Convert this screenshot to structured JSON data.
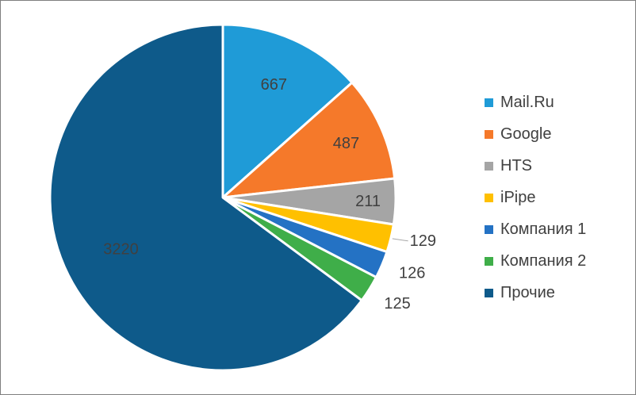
{
  "chart_data": {
    "type": "pie",
    "categories": [
      "Mail.Ru",
      "Google",
      "HTS",
      "iPipe",
      "Компания 1",
      "Компания 2",
      "Прочие"
    ],
    "values": [
      667,
      487,
      211,
      129,
      126,
      125,
      3220
    ],
    "data_labels": [
      "667",
      "487",
      "211",
      "129",
      "126",
      "125",
      "3220"
    ],
    "colors": [
      "#1f9bd7",
      "#f5792a",
      "#a5a5a5",
      "#ffc000",
      "#2472c4",
      "#3fae49",
      "#0e5a8a"
    ],
    "start_angle": "12 o'clock",
    "direction": "clockwise",
    "legend_position": "right",
    "title": ""
  }
}
